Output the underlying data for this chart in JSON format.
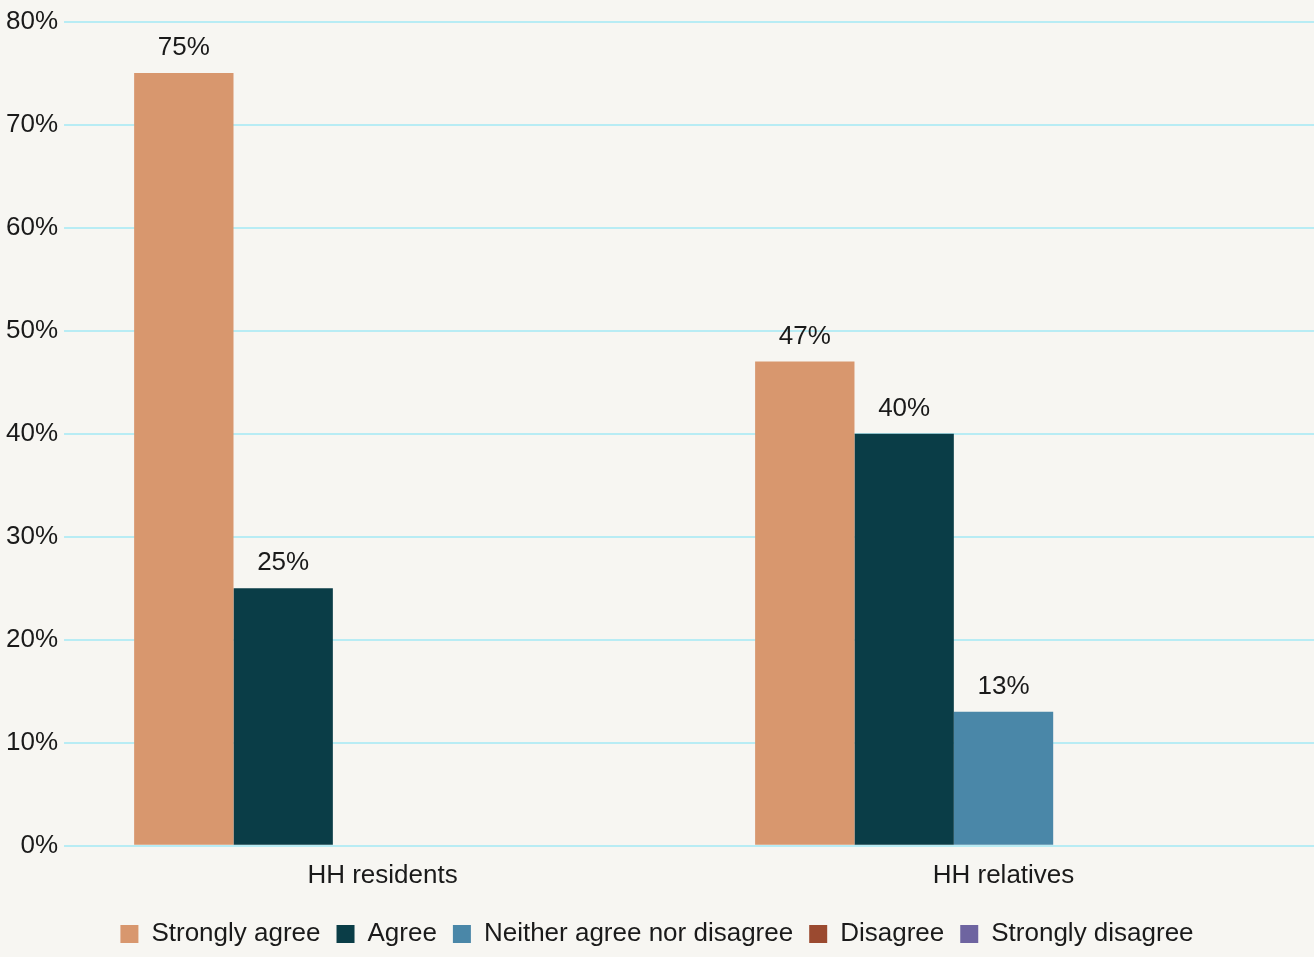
{
  "chart_data": {
    "type": "bar",
    "categories": [
      "HH residents",
      "HH relatives"
    ],
    "series": [
      {
        "name": "Strongly agree",
        "color": "#d8976e",
        "values": [
          75,
          47
        ],
        "value_labels": [
          "75%",
          "47%"
        ]
      },
      {
        "name": "Agree",
        "color": "#0a3d47",
        "values": [
          25,
          40
        ],
        "value_labels": [
          "25%",
          "40%"
        ]
      },
      {
        "name": "Neither agree nor disagree",
        "color": "#4a87a8",
        "values": [
          null,
          13
        ],
        "value_labels": [
          null,
          "13%"
        ]
      },
      {
        "name": "Disagree",
        "color": "#9b4a30",
        "values": [
          null,
          null
        ],
        "value_labels": [
          null,
          null
        ]
      },
      {
        "name": "Strongly disagree",
        "color": "#6e64a0",
        "values": [
          null,
          null
        ],
        "value_labels": [
          null,
          null
        ]
      }
    ],
    "ylim": [
      0,
      80
    ],
    "yticks": [
      {
        "value": 0,
        "label": "0%"
      },
      {
        "value": 10,
        "label": "10%"
      },
      {
        "value": 20,
        "label": "20%"
      },
      {
        "value": 30,
        "label": "30%"
      },
      {
        "value": 40,
        "label": "40%"
      },
      {
        "value": 50,
        "label": "50%"
      },
      {
        "value": 60,
        "label": "60%"
      },
      {
        "value": 70,
        "label": "70%"
      },
      {
        "value": 80,
        "label": "80%"
      }
    ],
    "grid": "y",
    "legend": "bottom"
  }
}
